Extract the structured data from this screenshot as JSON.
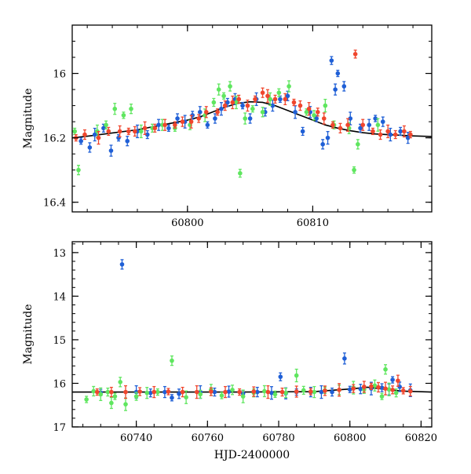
{
  "colors": {
    "blue": "#1f5fd6",
    "green": "#5fe65f",
    "red": "#f0462d",
    "model": "#000000"
  },
  "chart_data": [
    {
      "type": "scatter",
      "title": "",
      "xlabel": "",
      "ylabel": "Magnitude",
      "xlim": [
        60790.8,
        60819.5
      ],
      "ylim": [
        16.43,
        15.85
      ],
      "y_inverted": true,
      "xticks": [
        60800,
        60810
      ],
      "yticks": [
        16,
        16.2,
        16.4
      ],
      "yticklabels": [
        "16",
        "16.2",
        "16.4"
      ],
      "grid": false,
      "model_curve": {
        "x": [
          60790.8,
          60792,
          60794,
          60796,
          60798,
          60800,
          60801,
          60802,
          60803,
          60804,
          60805,
          60806,
          60807,
          60808,
          60809,
          60810,
          60811,
          60812,
          60813,
          60814,
          60815,
          60816,
          60817,
          60818,
          60819.5
        ],
        "y": [
          16.2,
          16.195,
          16.185,
          16.175,
          16.16,
          16.145,
          16.135,
          16.12,
          16.105,
          16.093,
          16.088,
          16.09,
          16.1,
          16.115,
          16.13,
          16.145,
          16.16,
          16.17,
          16.178,
          16.184,
          16.188,
          16.19,
          16.192,
          16.194,
          16.196
        ]
      },
      "series": [
        {
          "color": "blue",
          "x": [
            60791.5,
            60792.2,
            60792.6,
            60793.3,
            60793.9,
            60794.5,
            60795.2,
            60796.0,
            60796.8,
            60797.7,
            60798.5,
            60799.2,
            60799.8,
            60800.4,
            60801.0,
            60801.6,
            60802.2,
            60802.7,
            60803.2,
            60803.8,
            60804.4,
            60805.0,
            60805.5,
            60806.2,
            60806.8,
            60807.4,
            60808.0,
            60808.6,
            60809.2,
            60809.8,
            60810.3,
            60810.8,
            60811.2,
            60811.5,
            60811.8,
            60812.0,
            60812.5,
            60813.0,
            60813.8,
            60814.5,
            60815.0,
            60815.6,
            60816.2,
            60817.0,
            60817.6
          ],
          "y": [
            16.21,
            16.23,
            16.19,
            16.17,
            16.24,
            16.2,
            16.21,
            16.18,
            16.19,
            16.16,
            16.17,
            16.14,
            16.15,
            16.13,
            16.12,
            16.16,
            16.14,
            16.11,
            16.09,
            16.08,
            16.1,
            16.14,
            16.08,
            16.12,
            16.1,
            16.08,
            16.07,
            16.12,
            16.18,
            16.12,
            16.14,
            16.22,
            16.2,
            15.96,
            16.05,
            16.0,
            16.04,
            16.14,
            16.17,
            16.16,
            16.14,
            16.15,
            16.19,
            16.18,
            16.2
          ]
        },
        {
          "color": "green",
          "x": [
            60791.0,
            60791.3,
            60792.8,
            60793.5,
            60794.2,
            60794.9,
            60795.5,
            60796.3,
            60797.2,
            60798.0,
            60799.0,
            60800.2,
            60801.4,
            60802.1,
            60802.5,
            60802.9,
            60803.4,
            60803.9,
            60804.2,
            60804.6,
            60805.2,
            60806.0,
            60806.6,
            60807.3,
            60808.1,
            60809.5,
            60810.1,
            60811.0,
            60811.7,
            60812.9,
            60813.3,
            60813.6,
            60815.2
          ],
          "y": [
            16.18,
            16.3,
            16.18,
            16.16,
            16.11,
            16.13,
            16.11,
            16.18,
            16.17,
            16.16,
            16.17,
            16.16,
            16.13,
            16.09,
            16.05,
            16.07,
            16.04,
            16.09,
            16.31,
            16.14,
            16.11,
            16.12,
            16.08,
            16.06,
            16.04,
            16.12,
            16.13,
            16.1,
            16.16,
            16.17,
            16.3,
            16.22,
            16.16
          ]
        },
        {
          "color": "red",
          "x": [
            60791.1,
            60791.8,
            60792.9,
            60793.7,
            60794.6,
            60795.3,
            60795.8,
            60796.6,
            60797.4,
            60798.2,
            60799.0,
            60799.6,
            60800.3,
            60800.9,
            60801.5,
            60802.4,
            60803.0,
            60803.6,
            60804.1,
            60804.8,
            60805.4,
            60806.0,
            60806.4,
            60807.0,
            60807.8,
            60808.5,
            60809.0,
            60809.7,
            60810.4,
            60810.9,
            60811.6,
            60812.2,
            60812.8,
            60813.4,
            60814.0,
            60814.8,
            60815.4,
            60816.0,
            60816.6,
            60817.3,
            60817.8
          ],
          "y": [
            16.2,
            16.19,
            16.2,
            16.18,
            16.18,
            16.18,
            16.18,
            16.17,
            16.17,
            16.16,
            16.16,
            16.15,
            16.15,
            16.14,
            16.12,
            16.12,
            16.1,
            16.09,
            16.08,
            16.1,
            16.08,
            16.06,
            16.07,
            16.08,
            16.08,
            16.09,
            16.1,
            16.11,
            16.12,
            16.14,
            16.16,
            16.17,
            16.16,
            15.94,
            16.16,
            16.18,
            16.19,
            16.18,
            16.19,
            16.18,
            16.19
          ]
        }
      ]
    },
    {
      "type": "scatter",
      "title": "",
      "xlabel": "HJD-2400000",
      "ylabel": "Magnitude",
      "xlim": [
        60722,
        60823
      ],
      "ylim": [
        17.0,
        12.75
      ],
      "y_inverted": true,
      "xticks": [
        60740,
        60760,
        60780,
        60800,
        60820
      ],
      "yticks": [
        13,
        14,
        15,
        16,
        17
      ],
      "grid": false,
      "model_curve": {
        "x": [
          60722,
          60770,
          60790,
          60795,
          60800,
          60805,
          60810,
          60815,
          60823
        ],
        "y": [
          16.2,
          16.2,
          16.19,
          16.16,
          16.13,
          16.09,
          16.14,
          16.18,
          16.2
        ]
      },
      "series": [
        {
          "color": "blue",
          "x": [
            60730,
            60736,
            60740,
            60744,
            60748,
            60750,
            60752,
            60758,
            60762,
            60766,
            60770,
            60774,
            60778,
            60780.5,
            60782,
            60785,
            60789,
            60792,
            60795,
            60798.5,
            60800,
            60803,
            60806,
            60809,
            60811,
            60812,
            60814,
            60817
          ],
          "y": [
            16.21,
            13.27,
            16.2,
            16.22,
            16.2,
            16.33,
            16.24,
            16.2,
            16.2,
            16.19,
            16.23,
            16.2,
            16.22,
            15.85,
            16.23,
            16.2,
            16.2,
            16.2,
            16.2,
            15.43,
            16.14,
            16.13,
            16.12,
            16.1,
            16.14,
            15.92,
            16.08,
            16.16
          ]
        },
        {
          "color": "green",
          "x": [
            60726,
            60728,
            60730,
            60732,
            60733,
            60734,
            60735.5,
            60737,
            60740,
            60743,
            60746,
            60750,
            60754,
            60758,
            60761,
            60764,
            60767,
            60770,
            60773,
            60776,
            60779,
            60782,
            60785,
            60787,
            60790,
            60793,
            60797,
            60801,
            60804,
            60807,
            60809,
            60810,
            60811,
            60813
          ],
          "y": [
            16.37,
            16.18,
            16.25,
            16.2,
            16.45,
            16.3,
            15.97,
            16.48,
            16.3,
            16.22,
            16.2,
            15.48,
            16.32,
            16.25,
            16.15,
            16.28,
            16.15,
            16.3,
            16.22,
            16.18,
            16.25,
            16.22,
            15.82,
            16.16,
            16.2,
            16.16,
            16.15,
            16.1,
            16.14,
            16.05,
            16.3,
            15.68,
            16.14,
            16.22
          ]
        },
        {
          "color": "red",
          "x": [
            60729,
            60733,
            60737,
            60741,
            60745,
            60749,
            60753,
            60757,
            60761,
            60765,
            60769,
            60773,
            60777,
            60781,
            60785,
            60789,
            60793,
            60797,
            60801,
            60804,
            60806,
            60808,
            60810,
            60812,
            60813.5,
            60815,
            60817
          ],
          "y": [
            16.2,
            16.2,
            16.2,
            16.19,
            16.2,
            16.19,
            16.2,
            16.2,
            16.19,
            16.2,
            16.2,
            16.19,
            16.2,
            16.2,
            16.19,
            16.19,
            16.17,
            16.15,
            16.12,
            16.08,
            16.07,
            16.09,
            16.12,
            16.15,
            15.94,
            16.17,
            16.18
          ]
        }
      ]
    }
  ]
}
